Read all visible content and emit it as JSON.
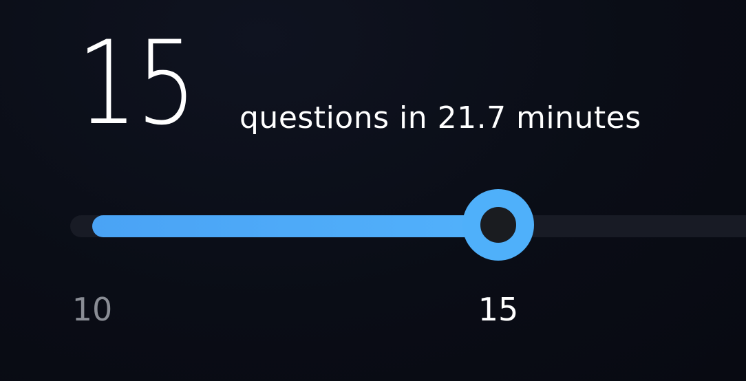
{
  "selection": {
    "count": "15",
    "summary": "questions in 21.7 minutes"
  },
  "slider": {
    "min": 10,
    "max": 20,
    "value": 15,
    "min_label": "10",
    "value_label": "15",
    "colors": {
      "fill": "#4fb0fa",
      "track": "#181b25",
      "thumb_center": "#1a1c20",
      "min_label": "#8a8d95",
      "value_label": "#ffffff"
    }
  }
}
